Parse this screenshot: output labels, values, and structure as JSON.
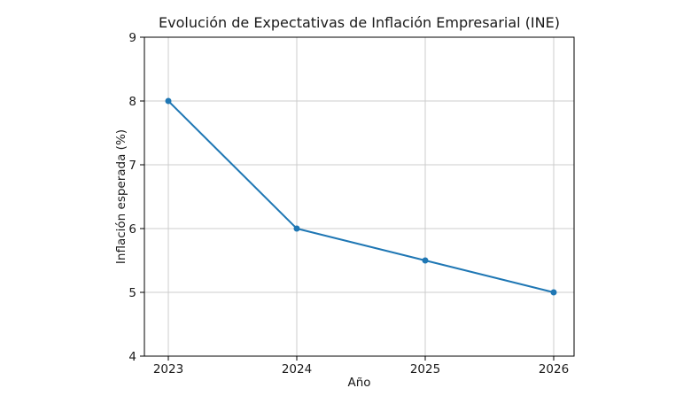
{
  "chart_data": {
    "type": "line",
    "title": "Evolución de Expectativas de Inflación Empresarial (INE)",
    "xlabel": "Año",
    "ylabel": "Inflación esperada (%)",
    "x": [
      2023,
      2024,
      2025,
      2026
    ],
    "values": [
      8.0,
      6.0,
      5.5,
      5.0
    ],
    "xticks": [
      "2023",
      "2024",
      "2025",
      "2026"
    ],
    "yticks": [
      "4",
      "5",
      "6",
      "7",
      "8",
      "9"
    ],
    "xlim": [
      2023,
      2026
    ],
    "ylim": [
      4,
      9
    ],
    "grid": true,
    "legend_position": "none",
    "colors": {
      "line": "#1f77b4",
      "marker": "#1f77b4",
      "grid": "#cccccc",
      "spine": "#000000",
      "text": "#1a1a1a",
      "background": "#ffffff"
    }
  }
}
